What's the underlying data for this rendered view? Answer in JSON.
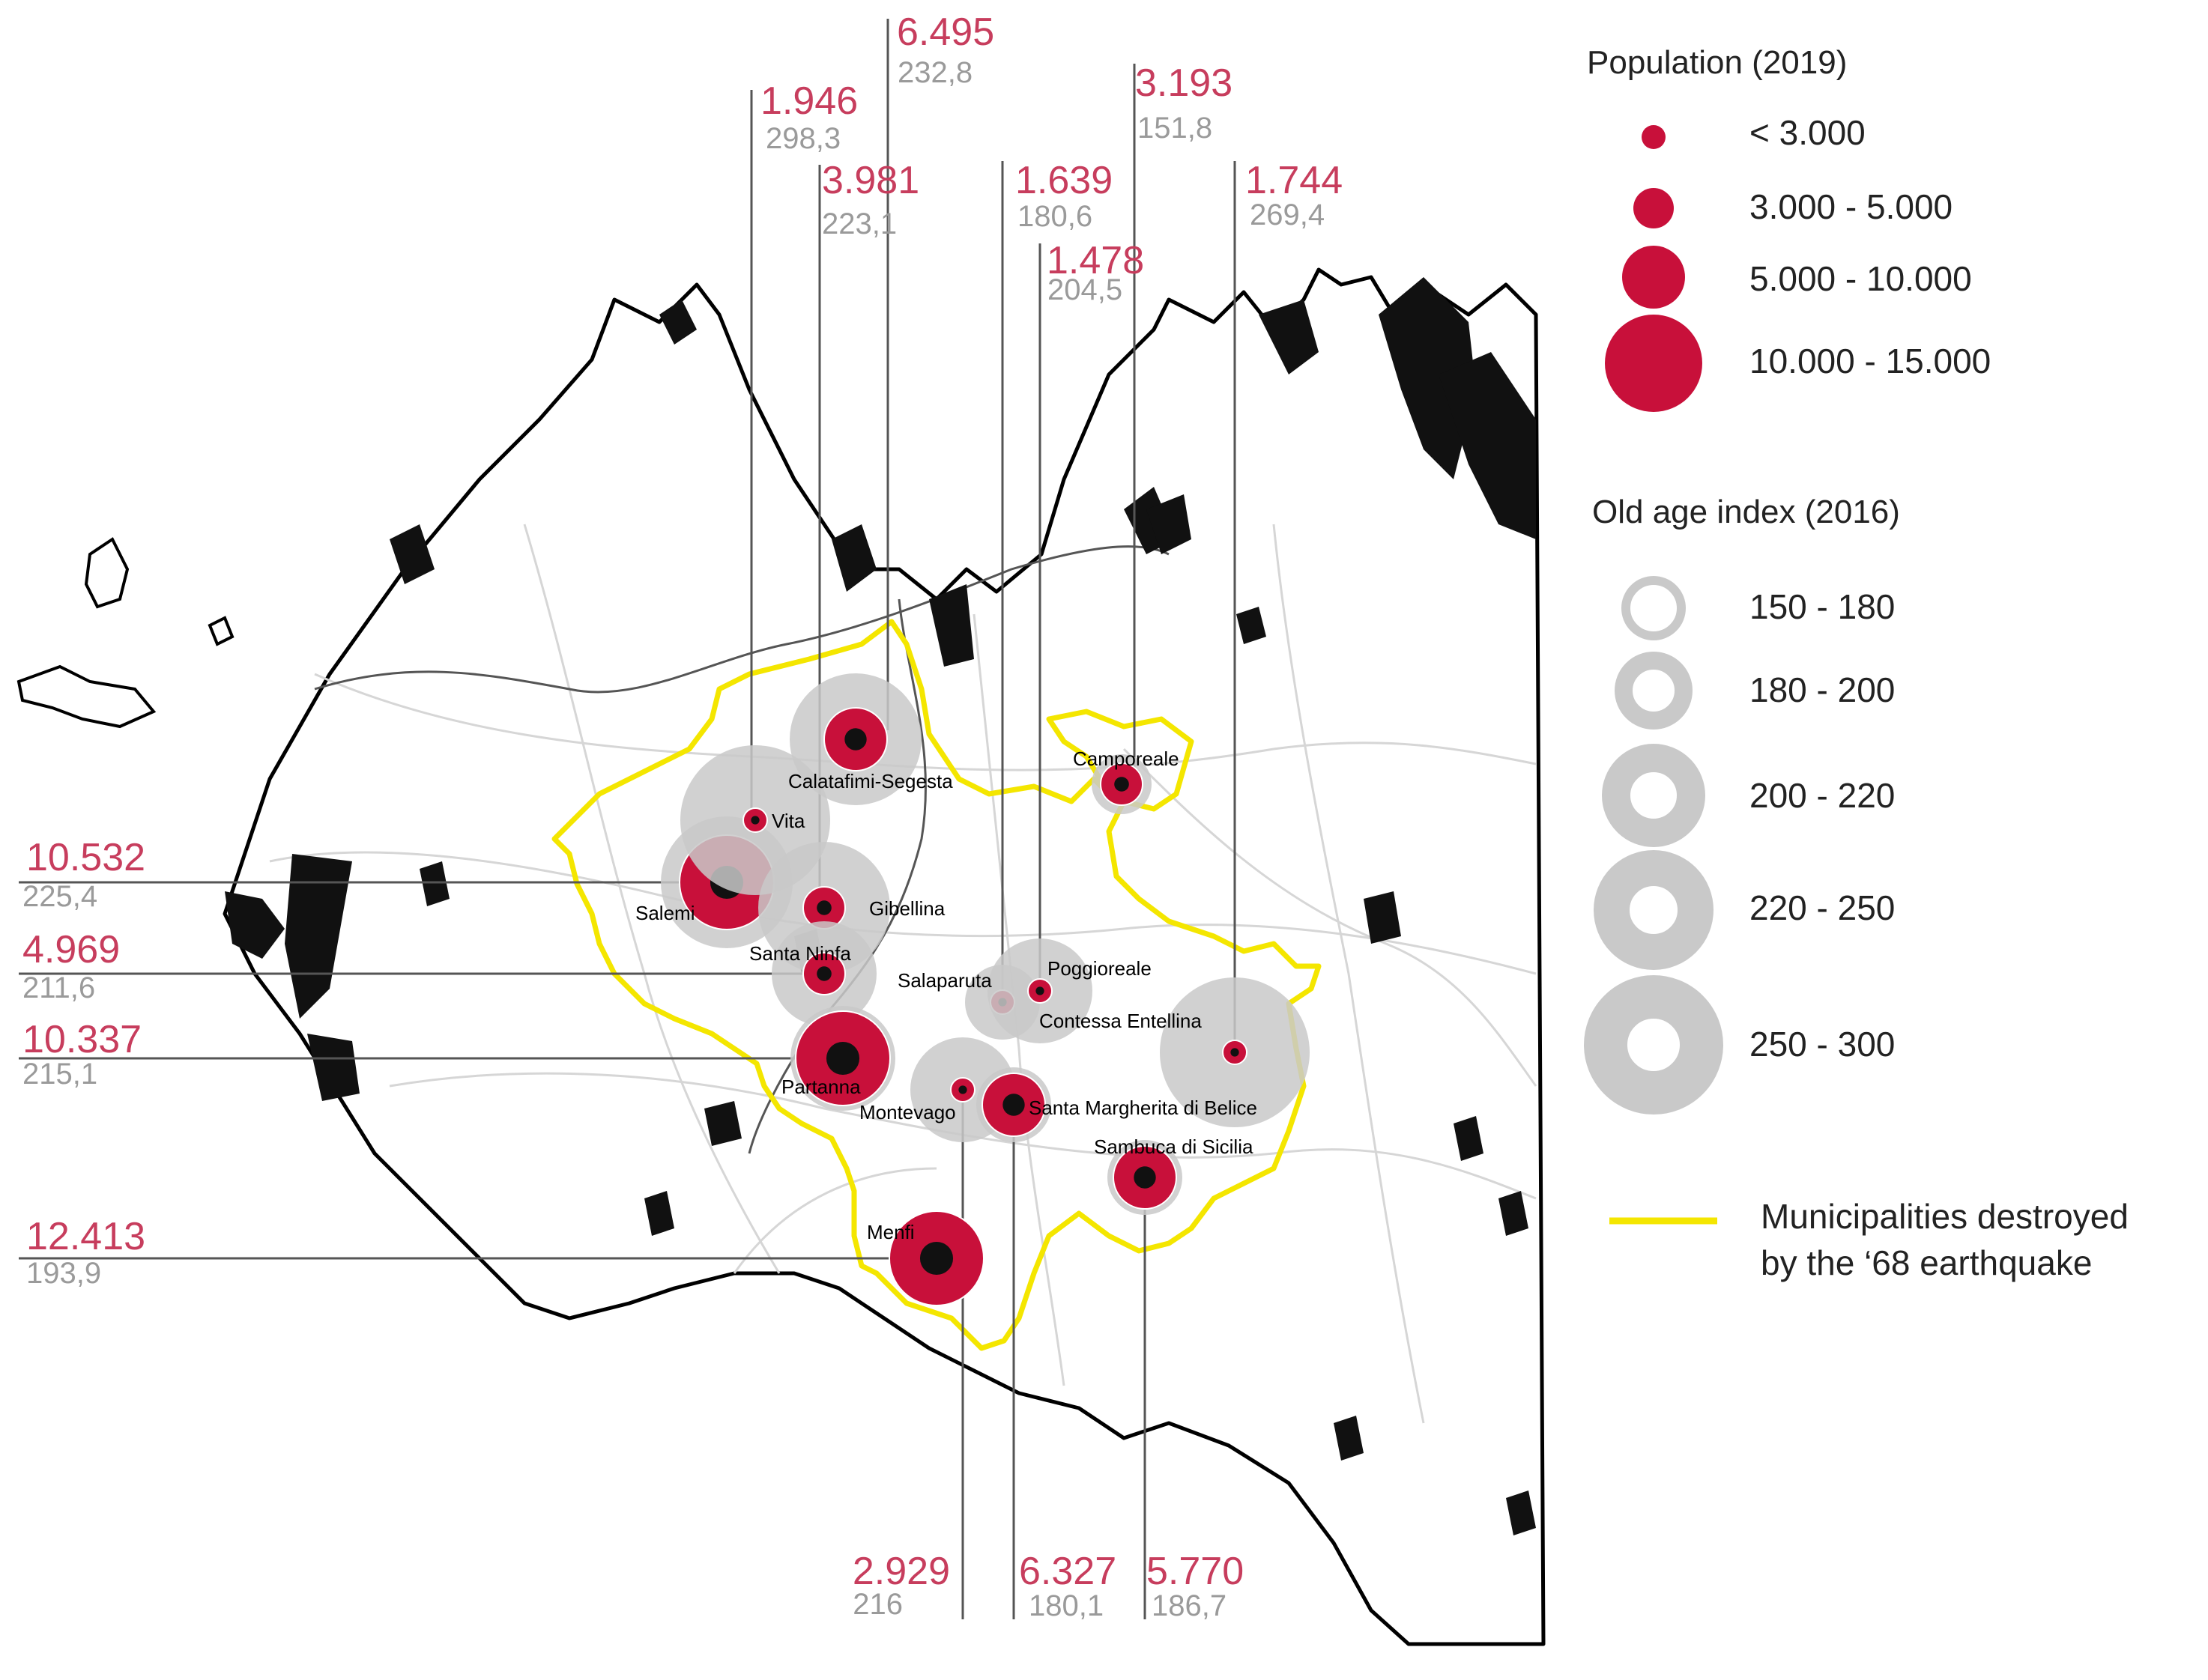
{
  "municipalities": [
    {
      "name": "Salemi",
      "population": "10.532",
      "old_age_index": "225,4",
      "pop_class": 4,
      "age_class": 4
    },
    {
      "name": "Vita",
      "population": "1.946",
      "old_age_index": "298,3",
      "pop_class": 1,
      "age_class": 5
    },
    {
      "name": "Calatafimi-Segesta",
      "population": "6.495",
      "old_age_index": "232,8",
      "pop_class": 3,
      "age_class": 4
    },
    {
      "name": "Gibellina",
      "population": "3.981",
      "old_age_index": "223,1",
      "pop_class": 2,
      "age_class": 4
    },
    {
      "name": "Santa Ninfa",
      "population": "4.969",
      "old_age_index": "211,6",
      "pop_class": 2,
      "age_class": 3
    },
    {
      "name": "Partanna",
      "population": "10.337",
      "old_age_index": "215,1",
      "pop_class": 4,
      "age_class": 3
    },
    {
      "name": "Salaparuta",
      "population": "1.639",
      "old_age_index": "180,6",
      "pop_class": 1,
      "age_class": 2
    },
    {
      "name": "Poggioreale",
      "population": "1.478",
      "old_age_index": "204,5",
      "pop_class": 1,
      "age_class": 3
    },
    {
      "name": "Camporeale",
      "population": "3.193",
      "old_age_index": "151,8",
      "pop_class": 2,
      "age_class": 1
    },
    {
      "name": "Contessa Entellina",
      "population": "1.744",
      "old_age_index": "269,4",
      "pop_class": 1,
      "age_class": 5
    },
    {
      "name": "Montevago",
      "population": "2.929",
      "old_age_index": "216",
      "pop_class": 1,
      "age_class": 3
    },
    {
      "name": "Santa Margherita di Belice",
      "population": "6.327",
      "old_age_index": "180,1",
      "pop_class": 3,
      "age_class": 2
    },
    {
      "name": "Sambuca di Sicilia",
      "population": "5.770",
      "old_age_index": "186,7",
      "pop_class": 3,
      "age_class": 2
    },
    {
      "name": "Menfi",
      "population": "12.413",
      "old_age_index": "193,9",
      "pop_class": 4,
      "age_class": 2
    }
  ],
  "legend": {
    "population_title": "Population (2019)",
    "population_classes": [
      "< 3.000",
      "3.000 - 5.000",
      "5.000 - 10.000",
      "10.000 - 15.000"
    ],
    "age_title": "Old age index (2016)",
    "age_classes": [
      "150 - 180",
      "180 - 200",
      "200 - 220",
      "220 - 250",
      "250 - 300"
    ],
    "quake_line1": "Municipalities destroyed",
    "quake_line2": "by the ‘68 earthquake"
  },
  "colors": {
    "population_circle": "#c8103a",
    "population_value_text": "#c73d5d",
    "old_age_ring": "#c9c9c9",
    "old_age_value_text": "#9a9a9a",
    "earthquake_boundary": "#f4e600",
    "urban_area": "#111111"
  }
}
